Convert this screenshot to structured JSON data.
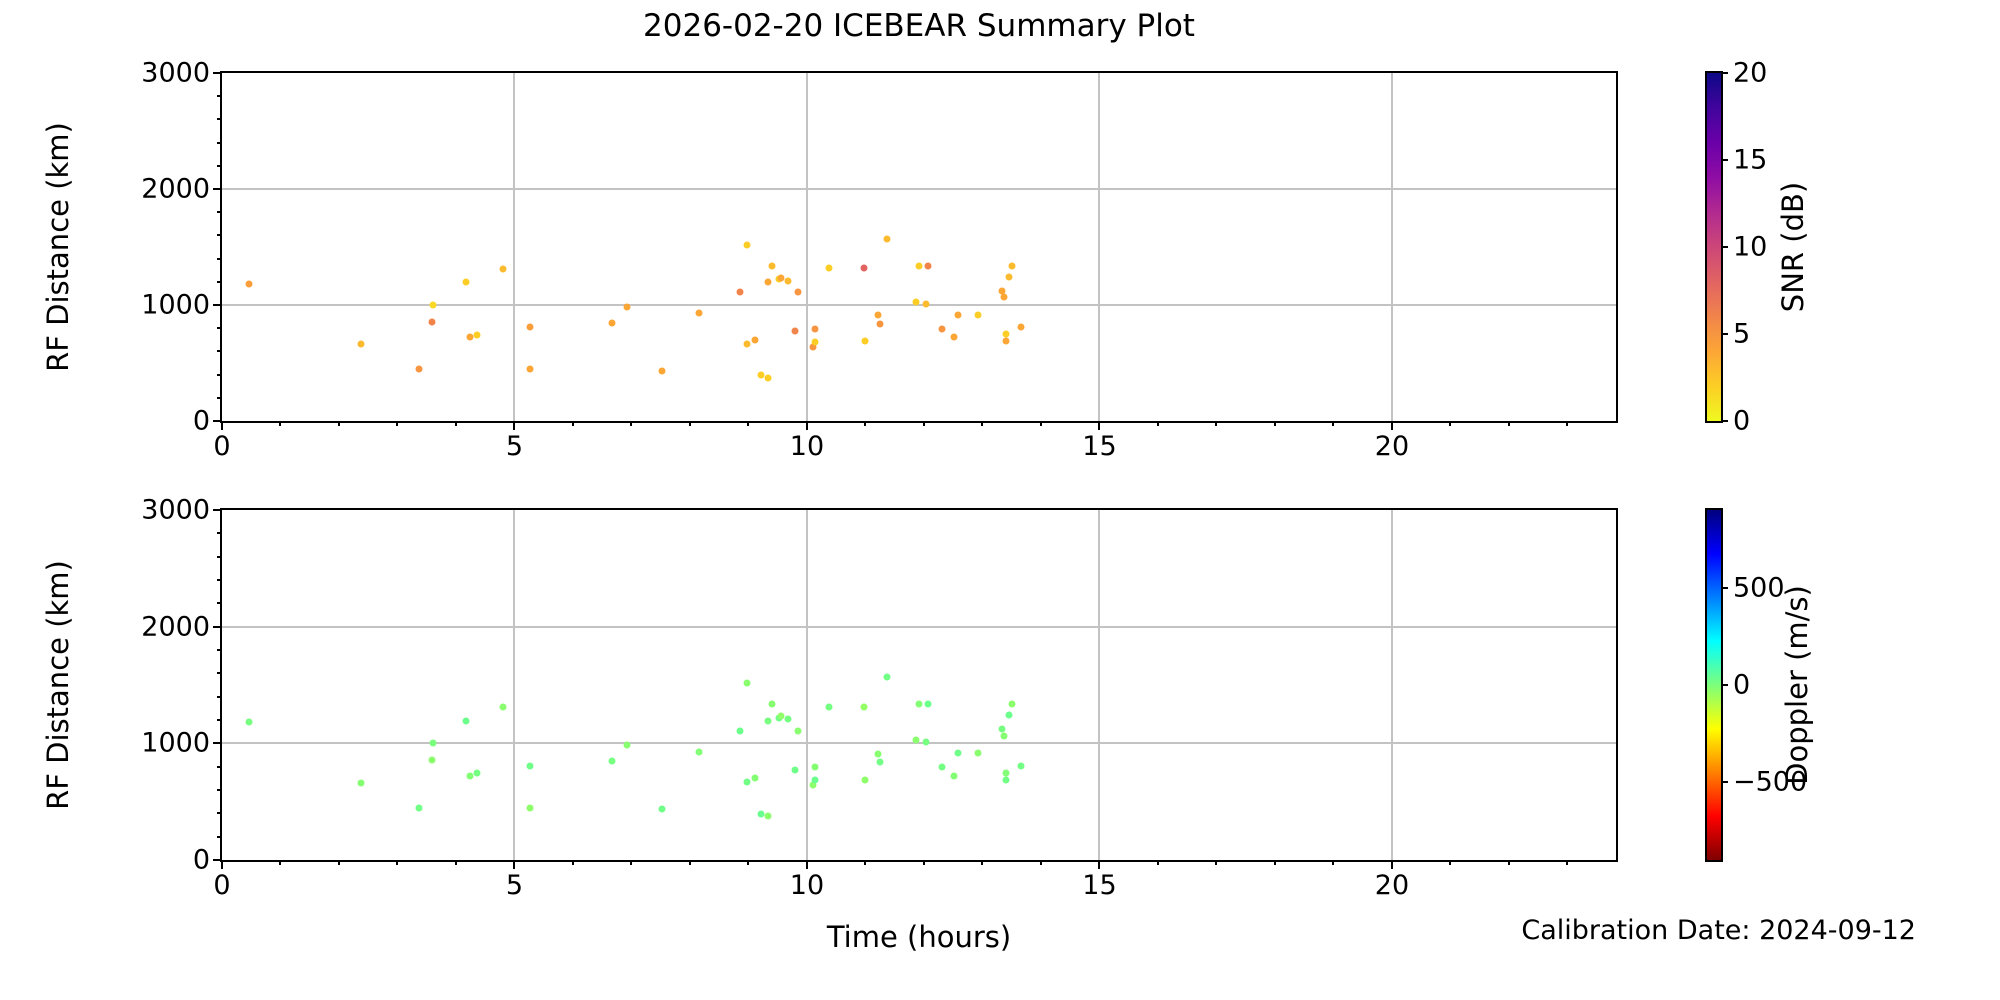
{
  "figure": {
    "title": "2026-02-20 ICEBEAR Summary Plot",
    "calibration_note": "Calibration Date: 2024-09-12"
  },
  "chart_data": {
    "type": "scatter",
    "title": "2026-02-20 ICEBEAR Summary Plot",
    "xlabel": "Time (hours)",
    "grid": true,
    "legend": "none",
    "subplots": [
      {
        "name": "snr-panel",
        "ylabel": "RF Distance (km)",
        "xlim": [
          0,
          23.83
        ],
        "ylim": [
          0,
          3000
        ],
        "xticks": [
          0,
          5,
          10,
          15,
          20
        ],
        "yticks": [
          0,
          1000,
          2000,
          3000
        ],
        "xtick_minor_step": 1,
        "ytick_minor_step": 200,
        "color_key": "snr_db",
        "colorbar": {
          "label": "SNR (dB)",
          "range": [
            0,
            20
          ],
          "ticks": [
            0,
            5,
            10,
            15,
            20
          ],
          "colormap": "plasma_r"
        }
      },
      {
        "name": "doppler-panel",
        "ylabel": "RF Distance (km)",
        "xlim": [
          0,
          23.83
        ],
        "ylim": [
          0,
          3000
        ],
        "xticks": [
          0,
          5,
          10,
          15,
          20
        ],
        "yticks": [
          0,
          1000,
          2000,
          3000
        ],
        "xtick_minor_step": 1,
        "ytick_minor_step": 200,
        "color_key": "doppler_ms",
        "colorbar": {
          "label": "Doppler (m/s)",
          "range": [
            -900,
            900
          ],
          "ticks": [
            -500,
            0,
            500
          ],
          "colormap": "jet_r"
        }
      }
    ],
    "points": {
      "columns": [
        "time_hours",
        "rf_distance_km",
        "snr_db",
        "doppler_ms"
      ],
      "rows": [
        [
          0.47,
          1180,
          4.5,
          10
        ],
        [
          2.37,
          660,
          3,
          -15
        ],
        [
          3.36,
          445,
          5,
          20
        ],
        [
          3.59,
          855,
          6,
          -25
        ],
        [
          3.61,
          1000,
          1.5,
          5
        ],
        [
          4.17,
          1195,
          2,
          30
        ],
        [
          4.24,
          720,
          4,
          -10
        ],
        [
          4.36,
          745,
          2,
          15
        ],
        [
          4.81,
          1310,
          3,
          -20
        ],
        [
          5.27,
          810,
          4.5,
          25
        ],
        [
          5.27,
          445,
          4,
          -30
        ],
        [
          6.66,
          845,
          4,
          12
        ],
        [
          6.92,
          985,
          4,
          -18
        ],
        [
          7.53,
          435,
          4,
          22
        ],
        [
          8.15,
          930,
          4,
          -8
        ],
        [
          8.85,
          1110,
          6,
          28
        ],
        [
          8.98,
          1520,
          2,
          -22
        ],
        [
          8.98,
          665,
          3,
          18
        ],
        [
          9.12,
          700,
          4,
          -12
        ],
        [
          9.22,
          395,
          2,
          35
        ],
        [
          9.34,
          375,
          2,
          -28
        ],
        [
          9.34,
          1195,
          4,
          8
        ],
        [
          9.41,
          1335,
          3,
          -16
        ],
        [
          9.53,
          1220,
          2,
          24
        ],
        [
          9.56,
          1235,
          4,
          -35
        ],
        [
          9.67,
          1205,
          3,
          14
        ],
        [
          9.8,
          775,
          6,
          26
        ],
        [
          9.85,
          1110,
          5,
          -20
        ],
        [
          10.1,
          640,
          5,
          -26
        ],
        [
          10.14,
          795,
          5,
          -14
        ],
        [
          10.14,
          685,
          2,
          32
        ],
        [
          10.37,
          1315,
          2,
          16
        ],
        [
          10.98,
          1315,
          8,
          -38
        ],
        [
          11.0,
          690,
          2,
          -30
        ],
        [
          11.22,
          910,
          4,
          -18
        ],
        [
          11.25,
          840,
          5,
          22
        ],
        [
          11.36,
          1565,
          3,
          20
        ],
        [
          11.86,
          1025,
          2,
          -24
        ],
        [
          11.92,
          1340,
          2,
          -10
        ],
        [
          12.03,
          1010,
          3,
          12
        ],
        [
          12.07,
          1335,
          6,
          28
        ],
        [
          12.31,
          795,
          5,
          15
        ],
        [
          12.51,
          720,
          4,
          -12
        ],
        [
          12.59,
          915,
          4,
          25
        ],
        [
          12.93,
          915,
          2,
          -20
        ],
        [
          13.34,
          1120,
          4,
          10
        ],
        [
          13.37,
          1065,
          4,
          -15
        ],
        [
          13.41,
          750,
          2,
          -8
        ],
        [
          13.41,
          690,
          4,
          20
        ],
        [
          13.46,
          1240,
          3,
          30
        ],
        [
          13.51,
          1340,
          3,
          -25
        ],
        [
          13.66,
          810,
          4,
          18
        ]
      ]
    },
    "annotations": [
      "Calibration Date: 2024-09-12"
    ],
    "colors": {
      "grid": "#c3c3c3",
      "spine": "#000000",
      "background": "#ffffff"
    }
  }
}
